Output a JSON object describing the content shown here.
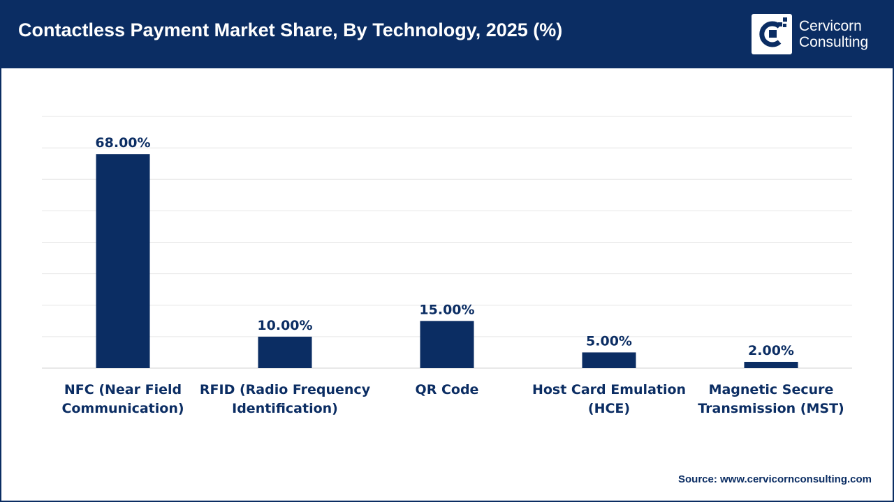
{
  "header": {
    "title": "Contactless Payment Market Share, By Technology, 2025 (%)",
    "background_color": "#0b2d63"
  },
  "logo": {
    "line1": "Cervicorn",
    "line2": "Consulting",
    "icon": "cervicorn-logo-icon"
  },
  "source": "Source: www.cervicornconsulting.com",
  "colors": {
    "bar": "#0b2d63",
    "text": "#0b2d63",
    "grid": "#e6e6e6"
  },
  "chart_data": {
    "type": "bar",
    "title": "",
    "xlabel": "",
    "ylabel": "",
    "categories": [
      [
        "NFC (Near Field",
        "Communication)"
      ],
      [
        "RFID (Radio Frequency",
        "Identification)"
      ],
      [
        "QR Code"
      ],
      [
        "Host Card Emulation",
        "(HCE)"
      ],
      [
        "Magnetic Secure",
        "Transmission (MST)"
      ]
    ],
    "values": [
      68,
      10,
      15,
      5,
      2
    ],
    "data_labels": [
      "68.00%",
      "10.00%",
      "15.00%",
      "5.00%",
      "2.00%"
    ],
    "ylim": [
      0,
      80
    ],
    "grid": true,
    "legend": "none"
  }
}
